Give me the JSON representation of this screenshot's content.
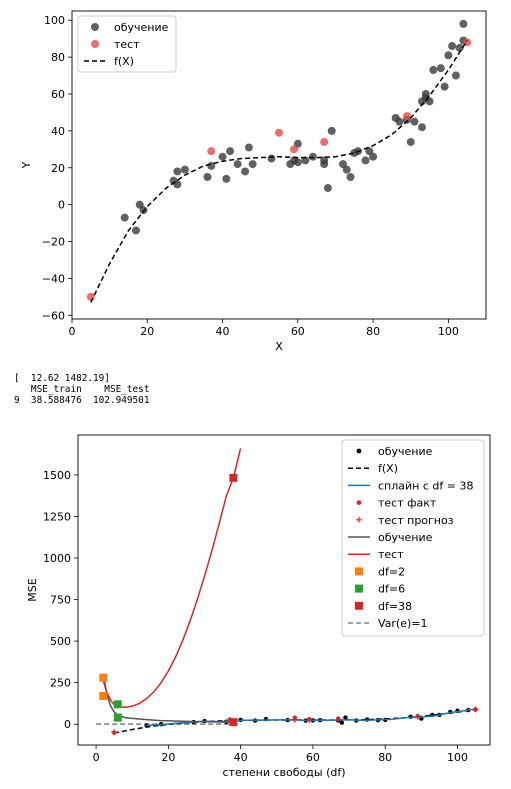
{
  "console": {
    "line1": "[  12.62 1482.19]",
    "header": "   MSE_train    MSE_test",
    "row": "9  38.588476  102.949501"
  },
  "chart_data": [
    {
      "type": "scatter",
      "xlabel": "X",
      "ylabel": "Y",
      "xlim": [
        0,
        110
      ],
      "ylim": [
        -62,
        105
      ],
      "xticks": [
        0,
        20,
        40,
        60,
        80,
        100
      ],
      "yticks": [
        -60,
        -40,
        -20,
        0,
        20,
        40,
        60,
        80,
        100
      ],
      "grid": false,
      "legend_position": "upper-left",
      "legend": [
        "обучение",
        "тест",
        "f(X)"
      ],
      "series": [
        {
          "name": "обучение",
          "color": "#3a3a3a",
          "points": [
            [
              14,
              -7
            ],
            [
              17,
              -14
            ],
            [
              18,
              0
            ],
            [
              19,
              -3
            ],
            [
              27,
              13
            ],
            [
              28,
              11
            ],
            [
              28,
              18
            ],
            [
              30,
              19
            ],
            [
              36,
              15
            ],
            [
              37,
              21
            ],
            [
              40,
              26
            ],
            [
              41,
              14
            ],
            [
              42,
              29
            ],
            [
              44,
              22
            ],
            [
              46,
              18
            ],
            [
              47,
              31
            ],
            [
              48,
              22
            ],
            [
              53,
              25
            ],
            [
              58,
              22
            ],
            [
              59,
              24
            ],
            [
              60,
              33
            ],
            [
              60,
              23
            ],
            [
              62,
              24
            ],
            [
              64,
              26
            ],
            [
              67,
              22
            ],
            [
              67,
              24
            ],
            [
              68,
              9
            ],
            [
              69,
              40
            ],
            [
              72,
              22
            ],
            [
              73,
              19
            ],
            [
              74,
              15
            ],
            [
              75,
              28
            ],
            [
              76,
              29
            ],
            [
              78,
              24
            ],
            [
              79,
              29
            ],
            [
              80,
              26
            ],
            [
              86,
              47
            ],
            [
              87,
              45
            ],
            [
              89,
              46
            ],
            [
              90,
              34
            ],
            [
              91,
              45
            ],
            [
              93,
              56
            ],
            [
              93,
              42
            ],
            [
              94,
              60
            ],
            [
              94,
              58
            ],
            [
              95,
              56
            ],
            [
              96,
              73
            ],
            [
              98,
              74
            ],
            [
              99,
              64
            ],
            [
              100,
              81
            ],
            [
              101,
              86
            ],
            [
              102,
              70
            ],
            [
              103,
              85
            ],
            [
              104,
              98
            ],
            [
              104,
              89
            ]
          ]
        },
        {
          "name": "тест",
          "color": "#e84848",
          "points": [
            [
              5,
              -50
            ],
            [
              37,
              29
            ],
            [
              55,
              39
            ],
            [
              59,
              30
            ],
            [
              67,
              34
            ],
            [
              89,
              48
            ],
            [
              105,
              88
            ]
          ]
        },
        {
          "name": "f(X)",
          "style": "dashed",
          "color": "#000000",
          "x": [
            5,
            10,
            15,
            20,
            25,
            30,
            35,
            40,
            45,
            50,
            55,
            60,
            65,
            70,
            75,
            80,
            85,
            90,
            95,
            100,
            105
          ],
          "y": [
            -53,
            -32,
            -14,
            -1,
            9,
            16,
            21,
            23.5,
            25,
            25.5,
            26,
            25.5,
            25.5,
            26,
            28,
            32,
            38,
            47,
            59,
            73,
            89
          ]
        }
      ]
    },
    {
      "type": "line",
      "xlabel": "степени свободы (df)",
      "ylabel": "MSE",
      "xlim": [
        -5,
        109
      ],
      "ylim": [
        -125,
        1740
      ],
      "xticks": [
        0,
        20,
        40,
        60,
        80,
        100
      ],
      "yticks": [
        0,
        250,
        500,
        750,
        1000,
        1250,
        1500
      ],
      "grid": false,
      "legend_position": "upper-right",
      "legend": [
        "обучение",
        "f(X)",
        "сплайн с df = 38",
        "тест факт",
        "тест прогноз",
        "обучение",
        "тест",
        "df=2",
        "df=6",
        "df=38",
        "Var(e)=1"
      ],
      "series": [
        {
          "name": "обучение",
          "color": "#000000",
          "marker": "dot",
          "points": [
            [
              14,
              -7
            ],
            [
              18,
              0
            ],
            [
              27,
              13
            ],
            [
              30,
              19
            ],
            [
              36,
              15
            ],
            [
              40,
              26
            ],
            [
              44,
              22
            ],
            [
              47,
              31
            ],
            [
              53,
              25
            ],
            [
              58,
              22
            ],
            [
              60,
              23
            ],
            [
              62,
              24
            ],
            [
              67,
              22
            ],
            [
              68,
              9
            ],
            [
              69,
              40
            ],
            [
              72,
              22
            ],
            [
              75,
              28
            ],
            [
              78,
              24
            ],
            [
              80,
              26
            ],
            [
              87,
              45
            ],
            [
              90,
              34
            ],
            [
              93,
              56
            ],
            [
              95,
              56
            ],
            [
              98,
              74
            ],
            [
              100,
              81
            ],
            [
              103,
              85
            ]
          ]
        },
        {
          "name": "f(X)",
          "style": "dashed",
          "color": "#000000",
          "x": [
            5,
            10,
            15,
            20,
            25,
            30,
            35,
            40,
            45,
            50,
            55,
            60,
            65,
            70,
            75,
            80,
            85,
            90,
            95,
            100,
            105
          ],
          "y": [
            -53,
            -32,
            -14,
            -1,
            9,
            16,
            21,
            23.5,
            25,
            25.5,
            26,
            25.5,
            25.5,
            26,
            28,
            32,
            38,
            47,
            59,
            73,
            89
          ]
        },
        {
          "name": "сплайн с df = 38",
          "color": "#1f77b4",
          "x": [
            14,
            18,
            22,
            26,
            30,
            34,
            38,
            42,
            46,
            50,
            54,
            58,
            62,
            66,
            70,
            74,
            78,
            82,
            86,
            90,
            94,
            98,
            102,
            105
          ],
          "y": [
            -6,
            -2,
            6,
            12,
            18,
            16,
            22,
            24,
            25,
            26,
            27,
            23,
            25,
            24,
            27,
            23,
            26,
            30,
            40,
            42,
            52,
            70,
            82,
            92
          ]
        },
        {
          "name": "тест факт",
          "color": "#d62728",
          "marker": "dot",
          "points": [
            [
              5,
              -50
            ],
            [
              37,
              29
            ],
            [
              55,
              39
            ],
            [
              59,
              30
            ],
            [
              67,
              34
            ],
            [
              89,
              48
            ],
            [
              105,
              88
            ]
          ]
        },
        {
          "name": "тест прогноз",
          "color": "#d62728",
          "marker": "plus",
          "points": [
            [
              5,
              -48
            ],
            [
              37,
              22
            ],
            [
              55,
              26
            ],
            [
              59,
              25
            ],
            [
              67,
              27
            ],
            [
              89,
              45
            ],
            [
              105,
              90
            ]
          ]
        },
        {
          "name": "обучение",
          "color": "#555555",
          "x": [
            2,
            3,
            4,
            5,
            6,
            8,
            10,
            14,
            18,
            24,
            30,
            36,
            38
          ],
          "y": [
            300,
            180,
            110,
            75,
            55,
            40,
            35,
            28,
            22,
            18,
            15,
            13,
            12.62
          ]
        },
        {
          "name": "тест",
          "color": "#d62728",
          "x": [
            2,
            3,
            4,
            5,
            6,
            8,
            10,
            12,
            14,
            16,
            18,
            20,
            22,
            24,
            26,
            28,
            30,
            32,
            34,
            36,
            38,
            40
          ],
          "y": [
            260,
            190,
            145,
            118,
            105,
            102,
            108,
            125,
            155,
            195,
            250,
            320,
            405,
            505,
            620,
            750,
            890,
            1040,
            1200,
            1370,
            1482.19,
            1660
          ]
        },
        {
          "name": "df=2",
          "color": "#ff7f0e",
          "marker": "square",
          "points": [
            [
              2,
              280
            ],
            [
              2,
              170
            ]
          ]
        },
        {
          "name": "df=6",
          "color": "#2ca02c",
          "marker": "square",
          "points": [
            [
              6,
              120
            ],
            [
              6,
              40
            ]
          ]
        },
        {
          "name": "df=38",
          "color": "#d62728",
          "marker": "square",
          "points": [
            [
              38,
              1482.19
            ],
            [
              38,
              12.62
            ]
          ]
        },
        {
          "name": "Var(e)=1",
          "style": "dashed",
          "color": "#808080",
          "x": [
            0,
            40
          ],
          "y": [
            1,
            1
          ]
        }
      ]
    }
  ]
}
